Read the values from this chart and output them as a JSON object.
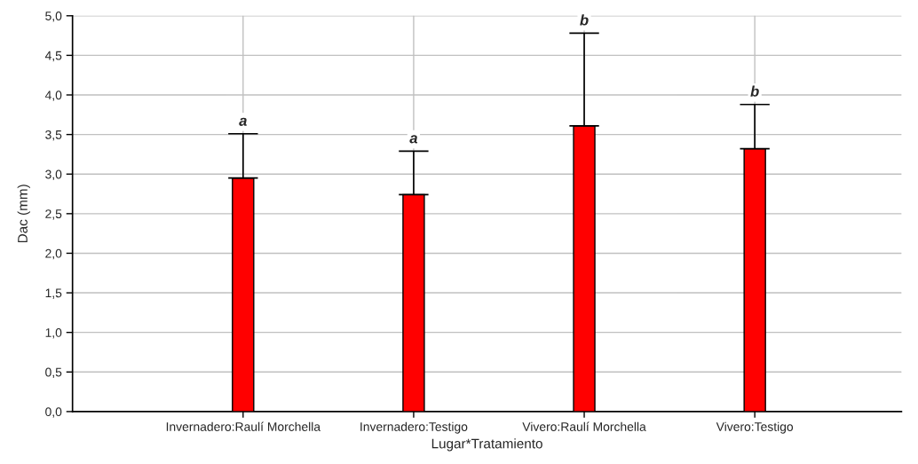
{
  "chart_data": {
    "type": "bar",
    "xlabel": "Lugar*Tratamiento",
    "ylabel": "Dac (mm)",
    "categories": [
      "Invernadero:Raulí Morchella",
      "Invernadero:Testigo",
      "Vivero:Raulí Morchella",
      "Vivero:Testigo"
    ],
    "values": [
      2.95,
      2.74,
      3.61,
      3.32
    ],
    "color": "#ff0000",
    "errors": [
      [
        2.95,
        3.51
      ],
      [
        2.74,
        3.29
      ],
      [
        3.61,
        4.78
      ],
      [
        3.32,
        3.88
      ]
    ],
    "ylim": [
      0,
      5
    ],
    "yticks": [
      {
        "value": 0,
        "label": "0,0"
      },
      {
        "value": 0.5,
        "label": "0,5"
      },
      {
        "value": 1,
        "label": "1,0"
      },
      {
        "value": 1.5,
        "label": "1,5"
      },
      {
        "value": 2,
        "label": "2,0"
      },
      {
        "value": 2.5,
        "label": "2,5"
      },
      {
        "value": 3,
        "label": "3,0"
      },
      {
        "value": 3.5,
        "label": "3,5"
      },
      {
        "value": 4,
        "label": "4,0"
      },
      {
        "value": 4.5,
        "label": "4,5"
      },
      {
        "value": 5,
        "label": "5,0"
      }
    ],
    "grid": true,
    "annotations": [
      {
        "text": "a",
        "x": "Invernadero:Raulí Morchella",
        "y": 3.51
      },
      {
        "text": "a",
        "x": "Invernadero:Testigo",
        "y": 3.29
      },
      {
        "text": "b",
        "x": "Vivero:Raulí Morchella",
        "y": 4.78
      },
      {
        "text": "b",
        "x": "Vivero:Testigo",
        "y": 3.88
      }
    ]
  }
}
